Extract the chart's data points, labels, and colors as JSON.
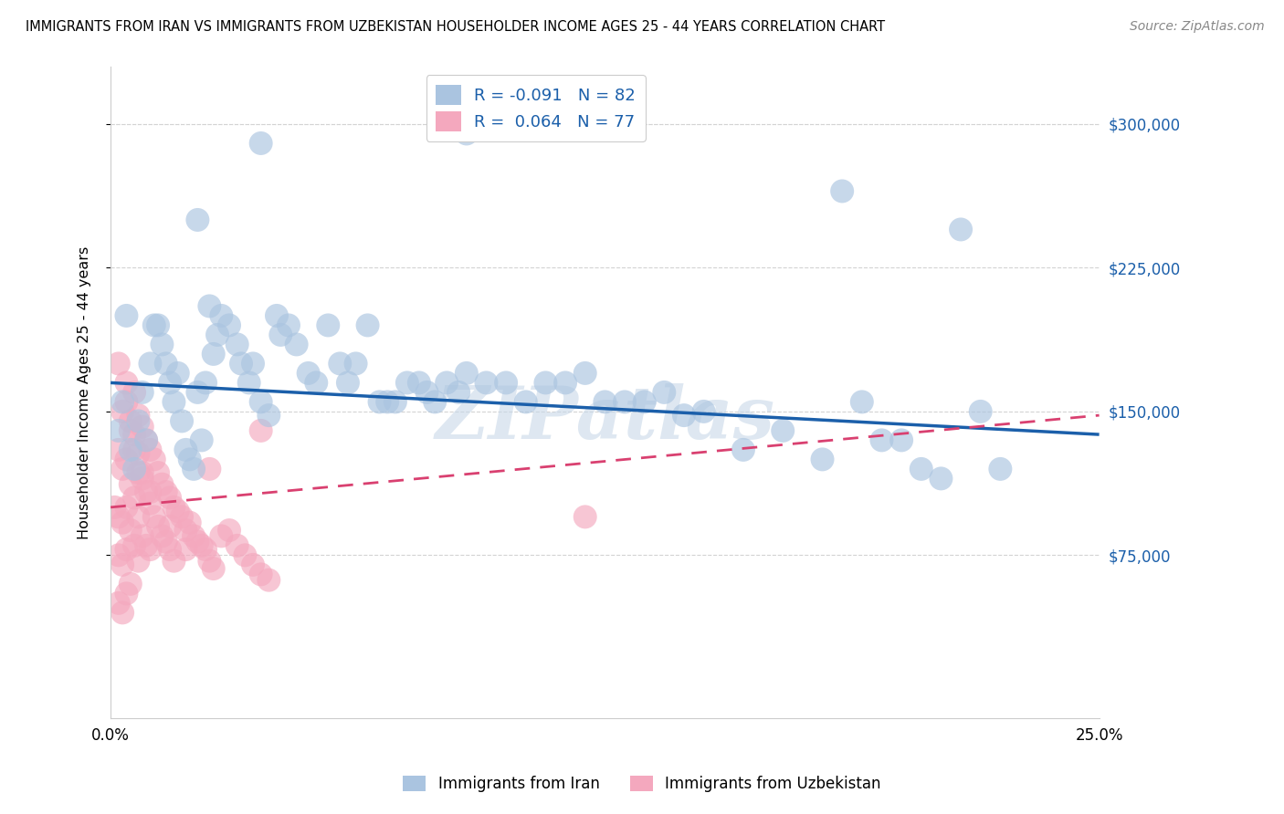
{
  "title": "IMMIGRANTS FROM IRAN VS IMMIGRANTS FROM UZBEKISTAN HOUSEHOLDER INCOME AGES 25 - 44 YEARS CORRELATION CHART",
  "source": "Source: ZipAtlas.com",
  "ylabel": "Householder Income Ages 25 - 44 years",
  "y_tick_values": [
    75000,
    150000,
    225000,
    300000
  ],
  "y_tick_labels": [
    "$75,000",
    "$150,000",
    "$225,000",
    "$300,000"
  ],
  "ylim": [
    -10000,
    330000
  ],
  "xlim": [
    0,
    0.25
  ],
  "x_tick_labels": [
    "0.0%",
    "25.0%"
  ],
  "legend_label_iran": "Immigrants from Iran",
  "legend_label_uzbekistan": "Immigrants from Uzbekistan",
  "iran_color": "#aac4e0",
  "iran_line_color": "#1b5faa",
  "uzbekistan_color": "#f4a8be",
  "uzbekistan_line_color": "#d94070",
  "iran_R": -0.091,
  "iran_N": 82,
  "uzbekistan_R": 0.064,
  "uzbekistan_N": 77,
  "watermark": "ZIPatlas",
  "iran_line_x0": 0.0,
  "iran_line_y0": 165000,
  "iran_line_x1": 0.25,
  "iran_line_y1": 138000,
  "uzbek_line_x0": 0.0,
  "uzbek_line_y0": 100000,
  "uzbek_line_x1": 0.25,
  "uzbek_line_y1": 148000,
  "iran_points_x": [
    0.002,
    0.003,
    0.004,
    0.005,
    0.006,
    0.007,
    0.008,
    0.009,
    0.01,
    0.011,
    0.012,
    0.013,
    0.014,
    0.015,
    0.016,
    0.017,
    0.018,
    0.019,
    0.02,
    0.021,
    0.022,
    0.023,
    0.024,
    0.025,
    0.026,
    0.027,
    0.028,
    0.03,
    0.032,
    0.033,
    0.035,
    0.036,
    0.038,
    0.04,
    0.042,
    0.043,
    0.045,
    0.047,
    0.05,
    0.052,
    0.055,
    0.058,
    0.06,
    0.062,
    0.065,
    0.068,
    0.07,
    0.072,
    0.075,
    0.078,
    0.08,
    0.082,
    0.085,
    0.088,
    0.09,
    0.095,
    0.1,
    0.105,
    0.11,
    0.115,
    0.12,
    0.125,
    0.13,
    0.135,
    0.14,
    0.145,
    0.15,
    0.16,
    0.17,
    0.18,
    0.185,
    0.19,
    0.195,
    0.2,
    0.205,
    0.21,
    0.215,
    0.22,
    0.225,
    0.09,
    0.038,
    0.022
  ],
  "iran_points_y": [
    140000,
    155000,
    200000,
    130000,
    120000,
    145000,
    160000,
    135000,
    175000,
    195000,
    195000,
    185000,
    175000,
    165000,
    155000,
    170000,
    145000,
    130000,
    125000,
    120000,
    160000,
    135000,
    165000,
    205000,
    180000,
    190000,
    200000,
    195000,
    185000,
    175000,
    165000,
    175000,
    155000,
    148000,
    200000,
    190000,
    195000,
    185000,
    170000,
    165000,
    195000,
    175000,
    165000,
    175000,
    195000,
    155000,
    155000,
    155000,
    165000,
    165000,
    160000,
    155000,
    165000,
    160000,
    170000,
    165000,
    165000,
    155000,
    165000,
    165000,
    170000,
    155000,
    155000,
    155000,
    160000,
    148000,
    150000,
    130000,
    140000,
    125000,
    265000,
    155000,
    135000,
    135000,
    120000,
    115000,
    245000,
    150000,
    120000,
    295000,
    290000,
    250000
  ],
  "uzbek_points_x": [
    0.001,
    0.002,
    0.002,
    0.002,
    0.002,
    0.003,
    0.003,
    0.003,
    0.003,
    0.004,
    0.004,
    0.004,
    0.004,
    0.004,
    0.005,
    0.005,
    0.005,
    0.005,
    0.006,
    0.006,
    0.006,
    0.006,
    0.007,
    0.007,
    0.007,
    0.007,
    0.008,
    0.008,
    0.008,
    0.009,
    0.009,
    0.009,
    0.01,
    0.01,
    0.01,
    0.011,
    0.011,
    0.012,
    0.012,
    0.013,
    0.013,
    0.014,
    0.014,
    0.015,
    0.015,
    0.016,
    0.016,
    0.017,
    0.018,
    0.019,
    0.02,
    0.021,
    0.022,
    0.023,
    0.024,
    0.025,
    0.025,
    0.026,
    0.028,
    0.03,
    0.032,
    0.034,
    0.036,
    0.038,
    0.038,
    0.04,
    0.002,
    0.003,
    0.004,
    0.005,
    0.006,
    0.007,
    0.008,
    0.01,
    0.015,
    0.019,
    0.12
  ],
  "uzbek_points_y": [
    100000,
    130000,
    95000,
    75000,
    50000,
    120000,
    92000,
    70000,
    45000,
    155000,
    125000,
    100000,
    78000,
    55000,
    140000,
    112000,
    88000,
    60000,
    160000,
    130000,
    105000,
    80000,
    148000,
    118000,
    95000,
    72000,
    142000,
    115000,
    85000,
    135000,
    108000,
    80000,
    130000,
    102000,
    78000,
    125000,
    95000,
    118000,
    90000,
    112000,
    85000,
    108000,
    82000,
    105000,
    78000,
    100000,
    72000,
    98000,
    95000,
    88000,
    92000,
    85000,
    82000,
    80000,
    78000,
    120000,
    72000,
    68000,
    85000,
    88000,
    80000,
    75000,
    70000,
    140000,
    65000,
    62000,
    175000,
    150000,
    165000,
    145000,
    138000,
    128000,
    118000,
    108000,
    90000,
    78000,
    95000
  ]
}
